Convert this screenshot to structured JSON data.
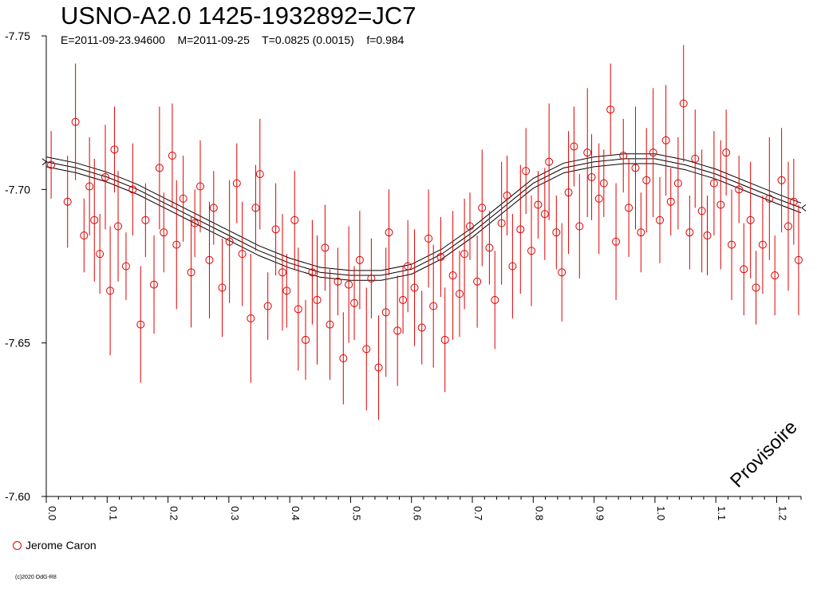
{
  "chart_data": {
    "type": "scatter",
    "title": "USNO-A2.0 1425-1932892=JC7",
    "subtitle": "E=2011-09-23.94600    M=2011-09-25    T=0.0825 (0.0015)    f=0.984",
    "xlim": [
      0.0,
      1.24
    ],
    "ylim": [
      -7.75,
      -7.6
    ],
    "y_inverted": true,
    "y_ticks": [
      -7.75,
      -7.7,
      -7.65,
      -7.6
    ],
    "y_tick_labels": [
      "-7.75",
      "-7.70",
      "-7.65",
      "-7.60"
    ],
    "x_ticks": [
      0.0,
      0.1,
      0.2,
      0.3,
      0.4,
      0.5,
      0.6,
      0.7,
      0.8,
      0.9,
      1.0,
      1.1,
      1.2
    ],
    "x_tick_labels": [
      "0.0",
      "0.1",
      "0.2",
      "0.3",
      "0.4",
      "0.5",
      "0.6",
      "0.7",
      "0.8",
      "0.9",
      "1.0",
      "1.1",
      "1.2"
    ],
    "grid": false,
    "legend_position": "bottom-left",
    "series": [
      {
        "name": "Jerome Caron",
        "color": "#e00000",
        "marker": "open-circle",
        "error_bars": true,
        "x": [
          0.008,
          0.035,
          0.048,
          0.062,
          0.071,
          0.079,
          0.088,
          0.097,
          0.105,
          0.112,
          0.118,
          0.131,
          0.142,
          0.155,
          0.163,
          0.177,
          0.186,
          0.193,
          0.207,
          0.214,
          0.225,
          0.238,
          0.244,
          0.253,
          0.268,
          0.275,
          0.289,
          0.301,
          0.313,
          0.322,
          0.336,
          0.344,
          0.351,
          0.364,
          0.377,
          0.388,
          0.395,
          0.408,
          0.414,
          0.426,
          0.437,
          0.445,
          0.458,
          0.466,
          0.479,
          0.488,
          0.497,
          0.506,
          0.515,
          0.526,
          0.534,
          0.546,
          0.558,
          0.563,
          0.577,
          0.586,
          0.594,
          0.605,
          0.617,
          0.628,
          0.636,
          0.648,
          0.655,
          0.668,
          0.679,
          0.687,
          0.696,
          0.708,
          0.716,
          0.728,
          0.737,
          0.748,
          0.757,
          0.766,
          0.779,
          0.788,
          0.797,
          0.808,
          0.819,
          0.826,
          0.838,
          0.847,
          0.858,
          0.867,
          0.876,
          0.889,
          0.896,
          0.908,
          0.916,
          0.927,
          0.936,
          0.948,
          0.957,
          0.968,
          0.977,
          0.986,
          0.997,
          1.008,
          1.018,
          1.026,
          1.038,
          1.047,
          1.057,
          1.066,
          1.077,
          1.086,
          1.097,
          1.108,
          1.117,
          1.126,
          1.138,
          1.146,
          1.157,
          1.166,
          1.177,
          1.188,
          1.197,
          1.208,
          1.219,
          1.228,
          1.236
        ],
        "y": [
          -7.708,
          -7.696,
          -7.722,
          -7.685,
          -7.701,
          -7.69,
          -7.679,
          -7.704,
          -7.667,
          -7.713,
          -7.688,
          -7.675,
          -7.7,
          -7.656,
          -7.69,
          -7.669,
          -7.707,
          -7.686,
          -7.711,
          -7.682,
          -7.697,
          -7.673,
          -7.689,
          -7.701,
          -7.677,
          -7.694,
          -7.668,
          -7.683,
          -7.702,
          -7.679,
          -7.658,
          -7.694,
          -7.705,
          -7.662,
          -7.687,
          -7.673,
          -7.667,
          -7.69,
          -7.661,
          -7.651,
          -7.673,
          -7.664,
          -7.681,
          -7.656,
          -7.67,
          -7.645,
          -7.669,
          -7.663,
          -7.677,
          -7.648,
          -7.671,
          -7.642,
          -7.66,
          -7.686,
          -7.654,
          -7.664,
          -7.675,
          -7.668,
          -7.655,
          -7.684,
          -7.662,
          -7.678,
          -7.651,
          -7.672,
          -7.666,
          -7.679,
          -7.688,
          -7.67,
          -7.694,
          -7.681,
          -7.664,
          -7.689,
          -7.698,
          -7.675,
          -7.687,
          -7.706,
          -7.68,
          -7.695,
          -7.692,
          -7.709,
          -7.686,
          -7.673,
          -7.699,
          -7.714,
          -7.688,
          -7.712,
          -7.704,
          -7.697,
          -7.702,
          -7.726,
          -7.683,
          -7.711,
          -7.694,
          -7.707,
          -7.686,
          -7.703,
          -7.712,
          -7.69,
          -7.716,
          -7.696,
          -7.702,
          -7.728,
          -7.686,
          -7.71,
          -7.693,
          -7.685,
          -7.702,
          -7.695,
          -7.712,
          -7.682,
          -7.7,
          -7.674,
          -7.69,
          -7.668,
          -7.682,
          -7.697,
          -7.672,
          -7.703,
          -7.688,
          -7.696,
          -7.677
        ]
      },
      {
        "name": "",
        "color": "#000000",
        "type": "line",
        "x": [
          0.0,
          0.05,
          0.1,
          0.15,
          0.2,
          0.25,
          0.3,
          0.35,
          0.4,
          0.45,
          0.5,
          0.55,
          0.6,
          0.65,
          0.7,
          0.75,
          0.8,
          0.85,
          0.9,
          0.95,
          1.0,
          1.05,
          1.1,
          1.15,
          1.2,
          1.24
        ],
        "y": [
          -7.709,
          -7.707,
          -7.704,
          -7.7,
          -7.695,
          -7.69,
          -7.685,
          -7.68,
          -7.676,
          -7.673,
          -7.672,
          -7.672,
          -7.674,
          -7.679,
          -7.686,
          -7.694,
          -7.702,
          -7.707,
          -7.709,
          -7.71,
          -7.71,
          -7.708,
          -7.705,
          -7.701,
          -7.697,
          -7.694
        ]
      }
    ],
    "annotations": [
      "Provisoire"
    ]
  },
  "legend": {
    "marker": "open-circle",
    "label": "Jerome Caron"
  },
  "watermark": "Provisoire",
  "copyright": "(c)2020 OdG-R8"
}
